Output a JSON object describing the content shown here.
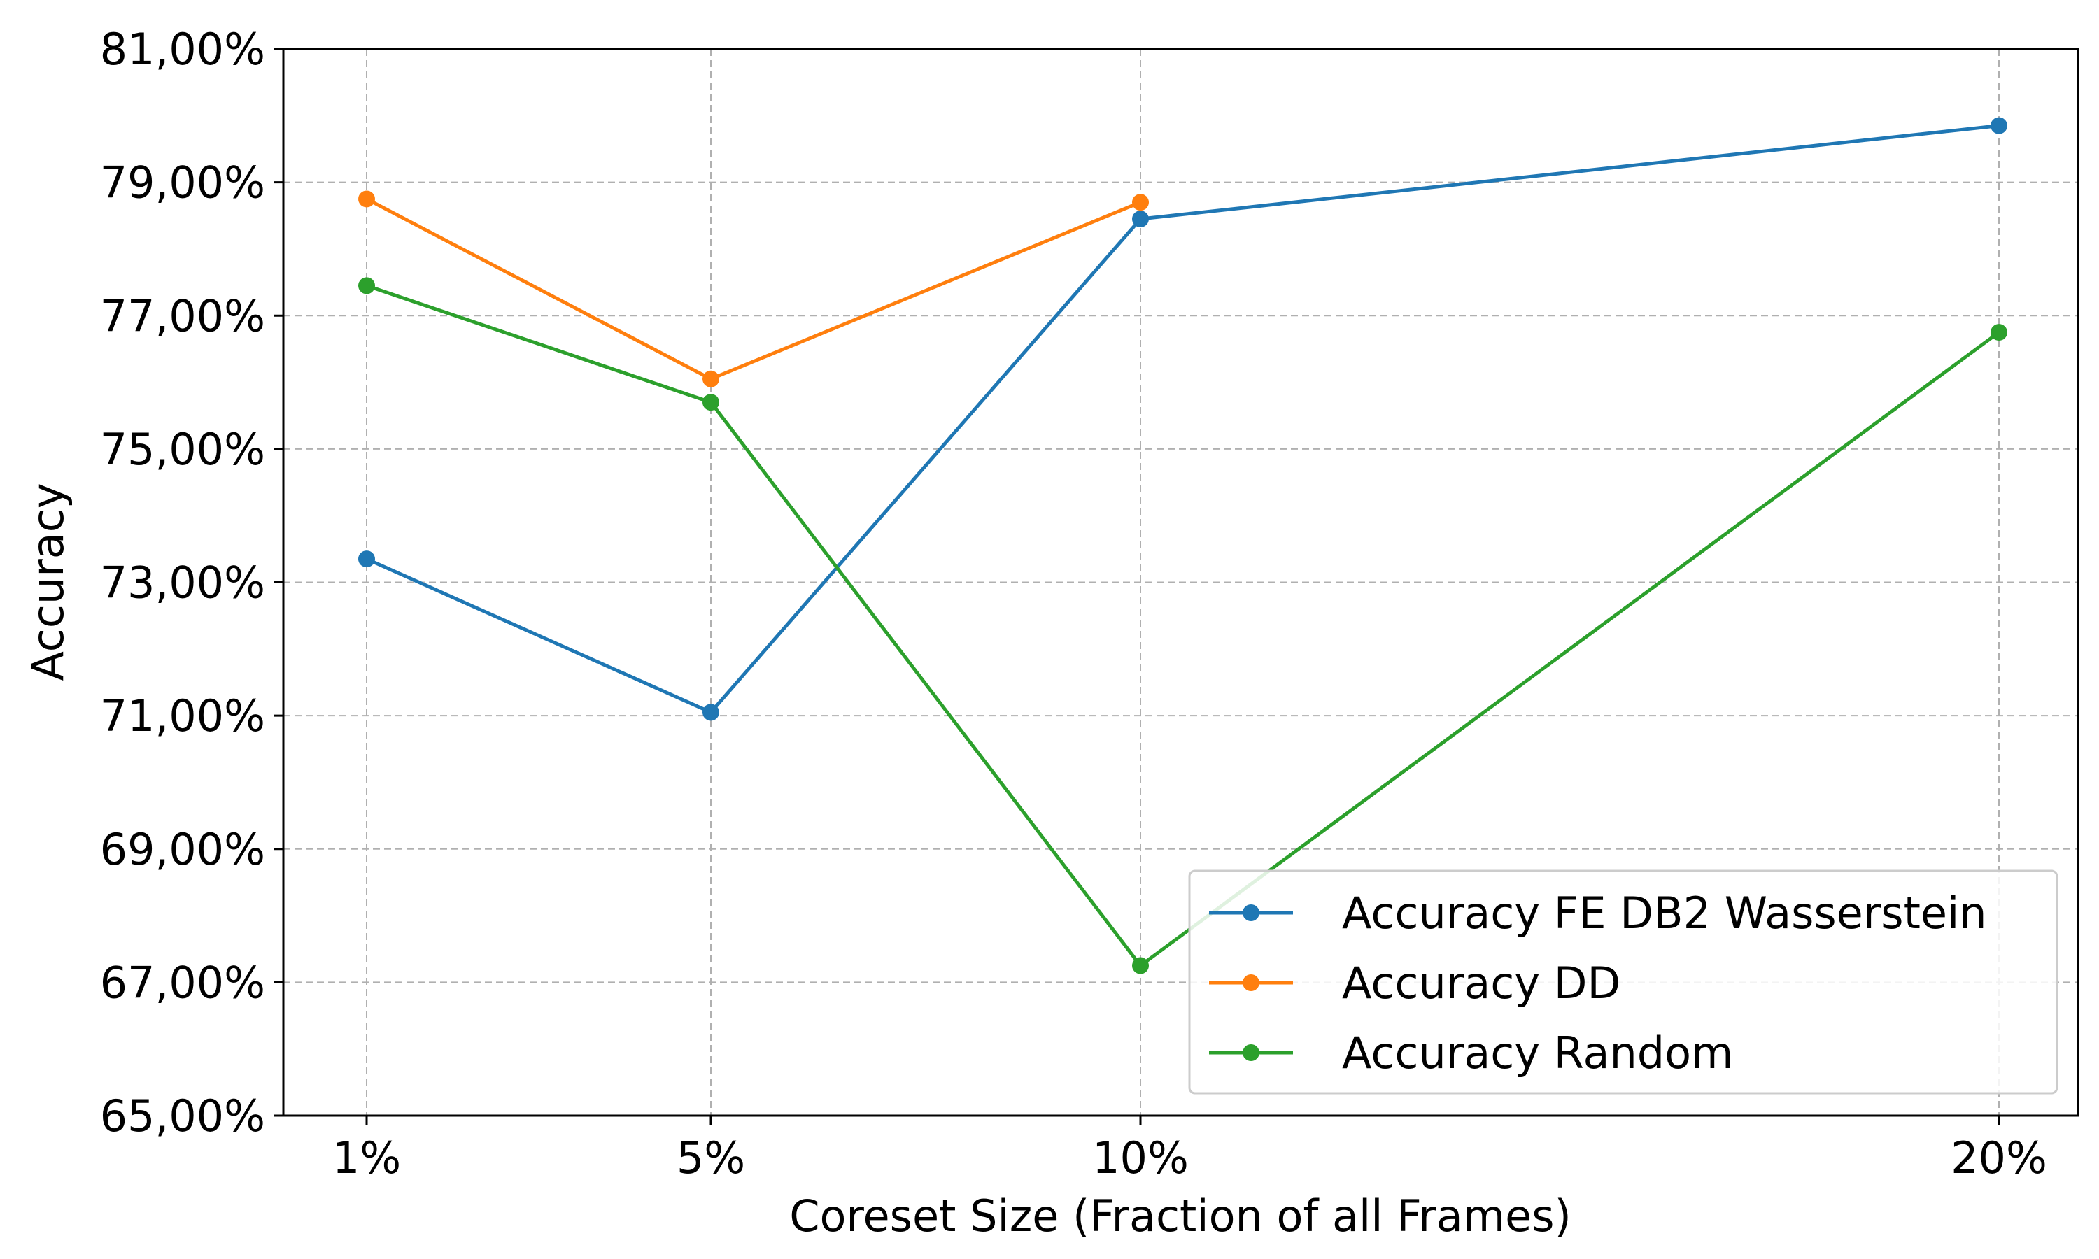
{
  "chart_data": {
    "type": "line",
    "xlabel": "Coreset Size (Fraction of all Frames)",
    "ylabel": "Accuracy",
    "x": [
      1,
      5,
      10,
      20
    ],
    "xtick_labels": [
      "1%",
      "5%",
      "10%",
      "20%"
    ],
    "ylim": [
      65,
      81
    ],
    "yticks": [
      65,
      67,
      69,
      71,
      73,
      75,
      77,
      79,
      81
    ],
    "ytick_labels": [
      "65,00%",
      "67,00%",
      "69,00%",
      "71,00%",
      "73,00%",
      "75,00%",
      "77,00%",
      "79,00%",
      "81,00%"
    ],
    "grid": true,
    "legend_position": "lower-right",
    "series": [
      {
        "name": "Accuracy FE DB2 Wasserstein",
        "color": "#1f77b4",
        "values": [
          73.35,
          71.05,
          78.45,
          79.85
        ]
      },
      {
        "name": "Accuracy DD",
        "color": "#ff7f0e",
        "values": [
          78.75,
          76.05,
          78.7,
          null
        ]
      },
      {
        "name": "Accuracy Random",
        "color": "#2ca02c",
        "values": [
          77.45,
          75.7,
          67.25,
          76.75
        ]
      }
    ]
  }
}
